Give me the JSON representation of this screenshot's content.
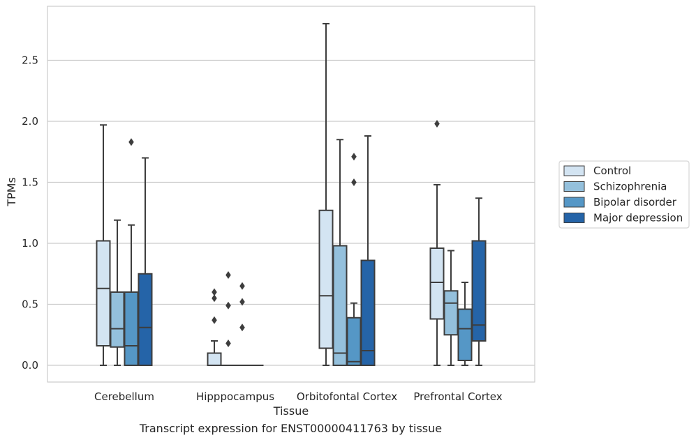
{
  "caption": "Transcript expression for ENST00000411763 by tissue",
  "chart_data": {
    "type": "box",
    "xlabel": "Tissue",
    "ylabel": "TPMs",
    "ylim": [
      -0.14,
      2.9
    ],
    "yticks": [
      0.0,
      0.5,
      1.0,
      1.5,
      2.0,
      2.5
    ],
    "ytick_labels": [
      "0.0",
      "0.5",
      "1.0",
      "1.5",
      "2.0",
      "2.5"
    ],
    "grid": "horizontal",
    "legend_position": "right",
    "categories": [
      "Cerebellum",
      "Hipppocampus",
      "Orbitofontal Cortex",
      "Prefrontal Cortex"
    ],
    "series": [
      {
        "name": "Control",
        "color": "#d3e4f2",
        "boxes": [
          {
            "whislo": 0.0,
            "q1": 0.16,
            "med": 0.63,
            "q3": 1.02,
            "whishi": 1.97,
            "fliers": []
          },
          {
            "whislo": 0.0,
            "q1": 0.0,
            "med": 0.0,
            "q3": 0.1,
            "whishi": 0.2,
            "fliers": [
              0.37,
              0.55,
              0.6
            ]
          },
          {
            "whislo": 0.0,
            "q1": 0.14,
            "med": 0.57,
            "q3": 1.27,
            "whishi": 2.8,
            "fliers": []
          },
          {
            "whislo": 0.0,
            "q1": 0.38,
            "med": 0.68,
            "q3": 0.96,
            "whishi": 1.48,
            "fliers": [
              1.98
            ]
          }
        ]
      },
      {
        "name": "Schizophrenia",
        "color": "#94c0dc",
        "boxes": [
          {
            "whislo": 0.0,
            "q1": 0.15,
            "med": 0.3,
            "q3": 0.6,
            "whishi": 1.19,
            "fliers": []
          },
          {
            "whislo": 0.0,
            "q1": 0.0,
            "med": 0.0,
            "q3": 0.0,
            "whishi": 0.0,
            "fliers": [
              0.18,
              0.49,
              0.74
            ]
          },
          {
            "whislo": 0.0,
            "q1": 0.0,
            "med": 0.1,
            "q3": 0.98,
            "whishi": 1.85,
            "fliers": []
          },
          {
            "whislo": 0.0,
            "q1": 0.25,
            "med": 0.51,
            "q3": 0.61,
            "whishi": 0.94,
            "fliers": []
          }
        ]
      },
      {
        "name": "Bipolar disorder",
        "color": "#5597c6",
        "boxes": [
          {
            "whislo": 0.0,
            "q1": 0.0,
            "med": 0.16,
            "q3": 0.6,
            "whishi": 1.15,
            "fliers": [
              1.83
            ]
          },
          {
            "whislo": 0.0,
            "q1": 0.0,
            "med": 0.0,
            "q3": 0.0,
            "whishi": 0.0,
            "fliers": [
              0.31,
              0.52,
              0.65
            ]
          },
          {
            "whislo": 0.0,
            "q1": 0.0,
            "med": 0.03,
            "q3": 0.39,
            "whishi": 0.51,
            "fliers": [
              1.5,
              1.71
            ]
          },
          {
            "whislo": 0.0,
            "q1": 0.04,
            "med": 0.3,
            "q3": 0.46,
            "whishi": 0.68,
            "fliers": []
          }
        ]
      },
      {
        "name": "Major depression",
        "color": "#2564a8",
        "boxes": [
          {
            "whislo": 0.0,
            "q1": 0.0,
            "med": 0.31,
            "q3": 0.75,
            "whishi": 1.7,
            "fliers": []
          },
          {
            "whislo": 0.0,
            "q1": 0.0,
            "med": 0.0,
            "q3": 0.0,
            "whishi": 0.0,
            "fliers": []
          },
          {
            "whislo": 0.0,
            "q1": 0.0,
            "med": 0.12,
            "q3": 0.86,
            "whishi": 1.88,
            "fliers": []
          },
          {
            "whislo": 0.0,
            "q1": 0.2,
            "med": 0.33,
            "q3": 1.02,
            "whishi": 1.37,
            "fliers": []
          }
        ]
      }
    ]
  }
}
